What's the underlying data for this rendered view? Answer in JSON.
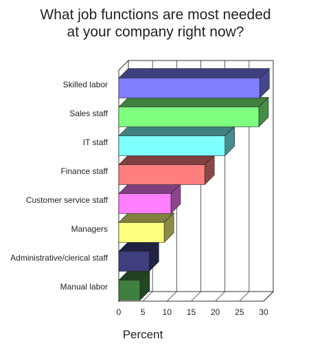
{
  "chart_data": {
    "type": "bar",
    "orientation": "horizontal",
    "title_lines": [
      "What job functions are most needed",
      "at your company right now?"
    ],
    "xlabel": "Percent",
    "ylabel": "",
    "xlim": [
      0,
      30
    ],
    "x_ticks": [
      "0",
      "5",
      "10",
      "15",
      "20",
      "25",
      "30"
    ],
    "grid": true,
    "legend": "none",
    "categories": [
      "Skilled labor",
      "Sales staff",
      "IT staff",
      "Finance staff",
      "Customer service staff",
      "Managers",
      "Administrative/clerical staff",
      "Manual labor"
    ],
    "values": [
      29.2,
      29.0,
      22.0,
      17.8,
      10.8,
      9.4,
      6.3,
      4.4
    ],
    "colors": [
      "#7f7fff",
      "#7fff7f",
      "#7fffff",
      "#ff7f7f",
      "#ff7fff",
      "#ffff7f",
      "#3f3f7f",
      "#3f7f3f"
    ]
  }
}
